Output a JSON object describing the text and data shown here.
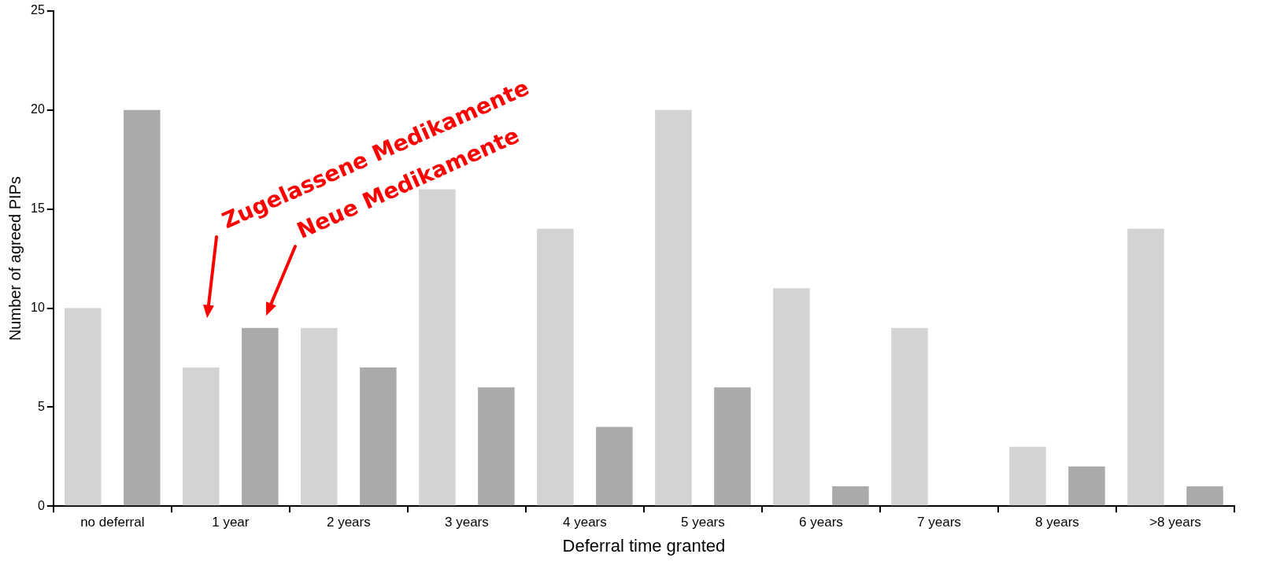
{
  "chart_data": {
    "type": "bar",
    "xlabel": "Deferral time granted",
    "ylabel": "Number of agreed PIPs",
    "categories": [
      "no deferral",
      "1 year",
      "2 years",
      "3 years",
      "4 years",
      "5 years",
      "6 years",
      "7 years",
      "8 years",
      ">8 years"
    ],
    "series": [
      {
        "color": "#d3d3d3",
        "values": [
          10,
          7,
          9,
          16,
          14,
          20,
          11,
          9,
          3,
          14
        ]
      },
      {
        "color": "#aaaaaa",
        "values": [
          20,
          9,
          7,
          6,
          4,
          6,
          1,
          0,
          2,
          1
        ]
      }
    ],
    "ylim": [
      0,
      25
    ],
    "yticks": [
      0,
      5,
      10,
      15,
      20,
      25
    ],
    "grid": false,
    "legend": false,
    "annotations": [
      "Zugelassene Medikamente",
      "Neue Medikamente"
    ]
  }
}
